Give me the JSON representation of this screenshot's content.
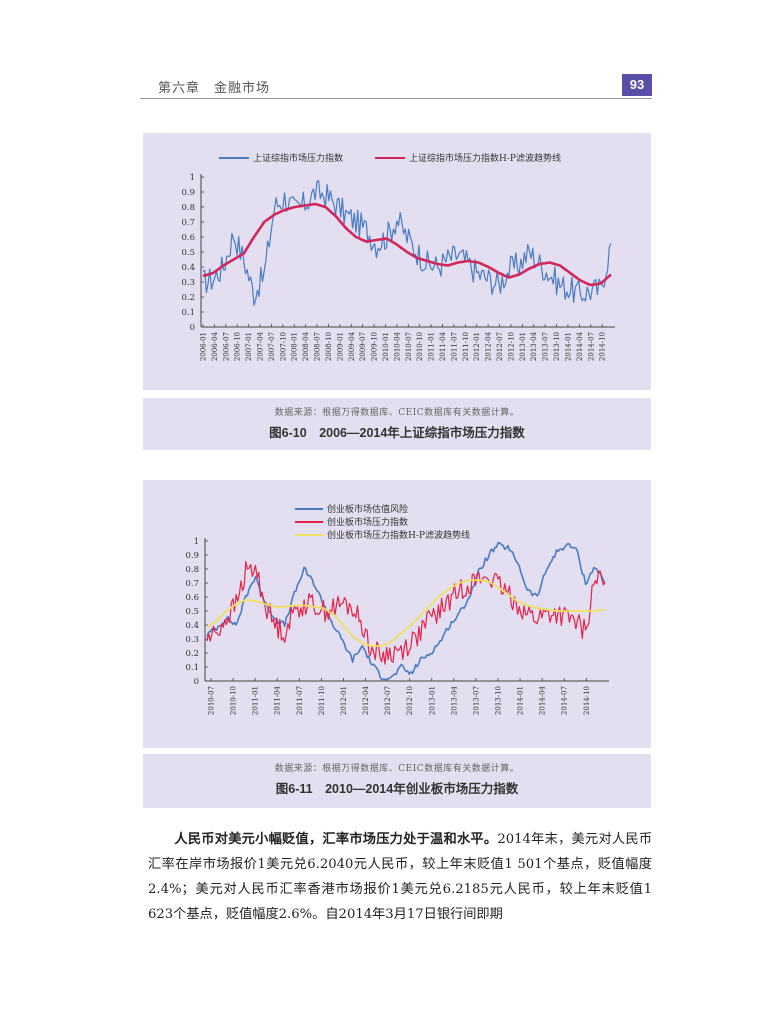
{
  "header": {
    "chapter": "第六章　金融市场",
    "page_number": "93",
    "accent_color": "#5a4fa6"
  },
  "figures": [
    {
      "source_note": "数据来源：根据万得数据库、CEIC数据库有关数据计算。",
      "caption": "图6-10　2006—2014年上证综指市场压力指数"
    },
    {
      "source_note": "数据来源：根据万得数据库、CEIC数据库有关数据计算。",
      "caption": "图6-11　2010—2014年创业板市场压力指数"
    }
  ],
  "body": {
    "lead": "人民币对美元小幅贬值，汇率市场压力处于温和水平。",
    "text": "2014年末，美元对人民币汇率在岸市场报价1美元兑6.2040元人民币，较上年末贬值1 501个基点，贬值幅度2.4%；美元对人民币汇率香港市场报价1美元兑6.2185元人民币，较上年末贬值1 623个基点，贬值幅度2.6%。自2014年3月17日银行间即期"
  },
  "chart_data": [
    {
      "type": "line",
      "title": "图6-10　2006—2014年上证综指市场压力指数",
      "xlabel": "",
      "ylabel": "",
      "ylim": [
        0,
        1
      ],
      "yticks": [
        "0",
        "0.1",
        "0.2",
        "0.3",
        "0.4",
        "0.5",
        "0.6",
        "0.7",
        "0.8",
        "0.9",
        "1"
      ],
      "legend_position": "top",
      "grid": false,
      "categories": [
        "2006-01",
        "2006-04",
        "2006-07",
        "2006-10",
        "2007-01",
        "2007-04",
        "2007-07",
        "2007-10",
        "2008-01",
        "2008-04",
        "2008-07",
        "2008-10",
        "2009-01",
        "2009-04",
        "2009-07",
        "2009-10",
        "2010-01",
        "2010-04",
        "2010-07",
        "2010-10",
        "2011-01",
        "2011-04",
        "2011-07",
        "2011-10",
        "2012-01",
        "2012-04",
        "2012-07",
        "2012-10",
        "2013-01",
        "2013-04",
        "2013-07",
        "2013-10",
        "2014-01",
        "2014-04",
        "2014-07",
        "2014-10"
      ],
      "series": [
        {
          "name": "上证综指市场压力指数",
          "color": "#4a7cc4",
          "width": 1.2,
          "noise": 0.09,
          "values": [
            0.3,
            0.32,
            0.4,
            0.62,
            0.45,
            0.22,
            0.35,
            0.8,
            0.86,
            0.78,
            0.82,
            0.9,
            0.88,
            0.82,
            0.75,
            0.7,
            0.65,
            0.55,
            0.6,
            0.72,
            0.6,
            0.5,
            0.42,
            0.4,
            0.45,
            0.48,
            0.42,
            0.35,
            0.32,
            0.28,
            0.38,
            0.42,
            0.5,
            0.42,
            0.35,
            0.28,
            0.25,
            0.22,
            0.24,
            0.25,
            0.55
          ]
        },
        {
          "name": "上证综指市场压力指数H-P滤波趋势线",
          "color": "#d0285a",
          "width": 2.6,
          "noise": 0,
          "values": [
            0.34,
            0.36,
            0.41,
            0.45,
            0.49,
            0.6,
            0.7,
            0.75,
            0.78,
            0.8,
            0.81,
            0.82,
            0.8,
            0.74,
            0.66,
            0.6,
            0.57,
            0.58,
            0.59,
            0.55,
            0.5,
            0.46,
            0.44,
            0.42,
            0.41,
            0.43,
            0.44,
            0.43,
            0.4,
            0.36,
            0.33,
            0.35,
            0.39,
            0.42,
            0.43,
            0.41,
            0.36,
            0.31,
            0.28,
            0.29,
            0.35
          ]
        }
      ]
    },
    {
      "type": "line",
      "title": "图6-11　2010—2014年创业板市场压力指数",
      "xlabel": "",
      "ylabel": "",
      "ylim": [
        0,
        1
      ],
      "yticks": [
        "0",
        "0.1",
        "0.2",
        "0.3",
        "0.4",
        "0.5",
        "0.6",
        "0.7",
        "0.8",
        "0.9",
        "1"
      ],
      "legend_position": "top",
      "grid": false,
      "categories": [
        "2010-07",
        "2010-10",
        "2011-01",
        "2011-04",
        "2011-07",
        "2011-10",
        "2012-01",
        "2012-04",
        "2012-07",
        "2012-10",
        "2013-01",
        "2013-04",
        "2013-07",
        "2013-10",
        "2014-01",
        "2014-04",
        "2014-07",
        "2014-10"
      ],
      "series": [
        {
          "name": "创业板市场估值风险",
          "color": "#4a7cc4",
          "width": 1.6,
          "noise": 0.02,
          "values": [
            0.33,
            0.38,
            0.45,
            0.4,
            0.6,
            0.75,
            0.55,
            0.45,
            0.4,
            0.62,
            0.8,
            0.7,
            0.55,
            0.4,
            0.28,
            0.15,
            0.25,
            0.12,
            0.03,
            0.02,
            0.1,
            0.05,
            0.15,
            0.2,
            0.28,
            0.4,
            0.48,
            0.6,
            0.78,
            0.9,
            0.97,
            0.95,
            0.85,
            0.65,
            0.6,
            0.8,
            0.92,
            0.97,
            0.95,
            0.7,
            0.82,
            0.7
          ]
        },
        {
          "name": "创业板市场压力指数",
          "color": "#e5234a",
          "width": 1.2,
          "noise": 0.08,
          "values": [
            0.3,
            0.35,
            0.45,
            0.55,
            0.78,
            0.8,
            0.55,
            0.4,
            0.35,
            0.5,
            0.55,
            0.55,
            0.5,
            0.52,
            0.55,
            0.52,
            0.4,
            0.22,
            0.18,
            0.2,
            0.22,
            0.28,
            0.35,
            0.45,
            0.5,
            0.58,
            0.65,
            0.7,
            0.72,
            0.75,
            0.68,
            0.62,
            0.55,
            0.48,
            0.45,
            0.48,
            0.48,
            0.45,
            0.42,
            0.35,
            0.75,
            0.68
          ]
        },
        {
          "name": "创业板市场压力指数H-P滤波趋势线",
          "color": "#f0e060",
          "width": 1.8,
          "noise": 0,
          "values": [
            0.38,
            0.43,
            0.5,
            0.55,
            0.58,
            0.57,
            0.55,
            0.53,
            0.53,
            0.54,
            0.54,
            0.53,
            0.52,
            0.48,
            0.4,
            0.32,
            0.27,
            0.25,
            0.25,
            0.28,
            0.34,
            0.4,
            0.47,
            0.54,
            0.61,
            0.66,
            0.7,
            0.72,
            0.72,
            0.71,
            0.67,
            0.62,
            0.57,
            0.54,
            0.52,
            0.51,
            0.5,
            0.5,
            0.5,
            0.5,
            0.5,
            0.51
          ]
        }
      ]
    }
  ]
}
